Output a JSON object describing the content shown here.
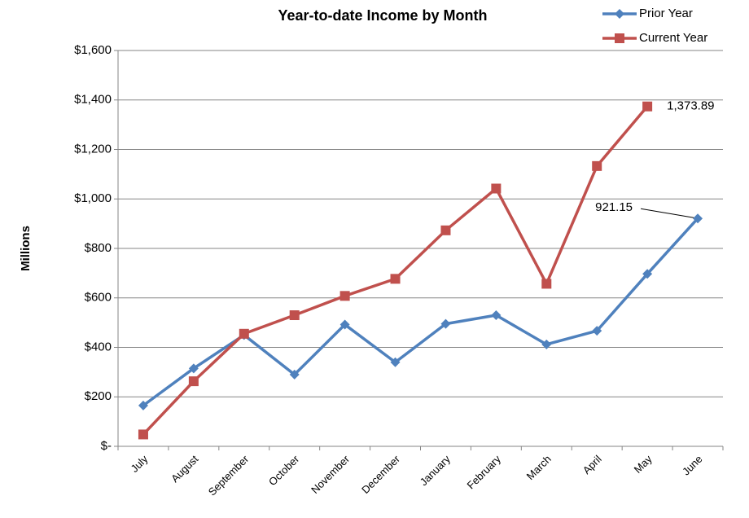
{
  "chart_data": {
    "type": "line",
    "title": "Year-to-date Income by Month",
    "y_label": "Millions",
    "categories": [
      "July",
      "August",
      "September",
      "October",
      "November",
      "December",
      "January",
      "February",
      "March",
      "April",
      "May",
      "June"
    ],
    "series": [
      {
        "name": "Prior Year",
        "color": "#4f81bd",
        "marker": "diamond",
        "values": [
          165,
          315,
          450,
          290,
          492,
          340,
          495,
          530,
          412,
          467,
          697,
          921.15
        ],
        "value_labels": [
          null,
          null,
          null,
          null,
          null,
          null,
          null,
          null,
          null,
          null,
          null,
          "921.15"
        ]
      },
      {
        "name": "Current Year",
        "color": "#c0504d",
        "marker": "square",
        "values": [
          48,
          263,
          455,
          530,
          608,
          677,
          873,
          1042,
          657,
          1133,
          1373.89,
          null
        ],
        "value_labels": [
          null,
          null,
          null,
          null,
          null,
          null,
          null,
          null,
          null,
          null,
          "1,373.89",
          null
        ]
      }
    ],
    "ylim": [
      0,
      1600
    ],
    "yticks": [
      {
        "value": 0,
        "label": "$-"
      },
      {
        "value": 200,
        "label": "$200"
      },
      {
        "value": 400,
        "label": "$400"
      },
      {
        "value": 600,
        "label": "$600"
      },
      {
        "value": 800,
        "label": "$800"
      },
      {
        "value": 1000,
        "label": "$1,000"
      },
      {
        "value": 1200,
        "label": "$1,200"
      },
      {
        "value": 1400,
        "label": "$1,400"
      },
      {
        "value": 1600,
        "label": "$1,600"
      }
    ],
    "grid": true,
    "legend": "top-right"
  }
}
